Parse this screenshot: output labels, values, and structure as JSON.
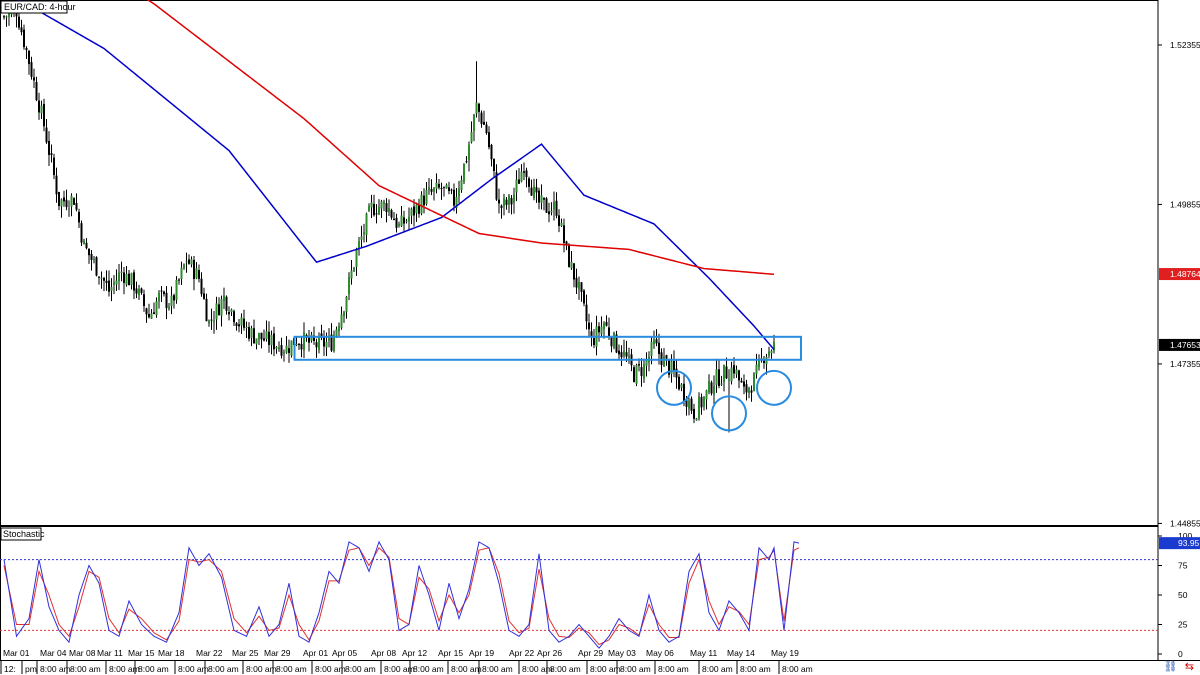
{
  "chart_data": [
    {
      "type": "candlestick",
      "title": "EUR/CAD: 4-hour",
      "x_labels": [
        "Mar 01",
        "Mar 04",
        "Mar 08",
        "Mar 11",
        "Mar 15",
        "Mar 18",
        "Mar 22",
        "Mar 25",
        "Mar 29",
        "Apr 01",
        "Apr 05",
        "Apr 08",
        "Apr 12",
        "Apr 15",
        "Apr 19",
        "Apr 22",
        "Apr 26",
        "Apr 29",
        "May 03",
        "May 06",
        "May 11",
        "May 14",
        "May 19"
      ],
      "x_sublabels": [
        "12:",
        "pm",
        "8:00 am",
        "8:00 am",
        "8:00 am",
        "8:00 am",
        "8:00 am",
        "8:00 am",
        "8:00 am",
        "8:00 am",
        "8:00 am",
        "8:00 am",
        "8:00 am",
        "8:00 am",
        "8:00 am",
        "8:00 am",
        "8:00 am",
        "8:00 am",
        "8:00 am",
        "8:00 am",
        "8:00 am",
        "8:00 am",
        "8:00 am",
        "8:00 am",
        "8:00 am",
        "8:00 am"
      ],
      "y_ticks": [
        "1.52355",
        "1.49855",
        "1.47355",
        "1.44855"
      ],
      "y_range": [
        1.4483,
        1.5306
      ],
      "close_path": [
        [
          0,
          1.528
        ],
        [
          5,
          1.529
        ],
        [
          10,
          1.521
        ],
        [
          16,
          1.511
        ],
        [
          22,
          1.499
        ],
        [
          28,
          1.4995
        ],
        [
          32,
          1.492
        ],
        [
          38,
          1.488
        ],
        [
          42,
          1.485
        ],
        [
          47,
          1.488
        ],
        [
          52,
          1.486
        ],
        [
          58,
          1.481
        ],
        [
          62,
          1.484
        ],
        [
          67,
          1.483
        ],
        [
          73,
          1.49
        ],
        [
          78,
          1.487
        ],
        [
          82,
          1.48
        ],
        [
          88,
          1.484
        ],
        [
          94,
          1.48
        ],
        [
          100,
          1.478
        ],
        [
          107,
          1.477
        ],
        [
          113,
          1.476
        ],
        [
          117,
          1.4775
        ],
        [
          125,
          1.4765
        ],
        [
          131,
          1.477
        ],
        [
          136,
          1.483
        ],
        [
          141,
          1.491
        ],
        [
          147,
          1.498
        ],
        [
          153,
          1.4985
        ],
        [
          158,
          1.495
        ],
        [
          163,
          1.497
        ],
        [
          169,
          1.5
        ],
        [
          175,
          1.501
        ],
        [
          180,
          1.499
        ],
        [
          185,
          1.506
        ],
        [
          189,
          1.514
        ],
        [
          193,
          1.51
        ],
        [
          198,
          1.498
        ],
        [
          203,
          1.499
        ],
        [
          208,
          1.505
        ],
        [
          213,
          1.499
        ],
        [
          217,
          1.498
        ],
        [
          221,
          1.498
        ],
        [
          225,
          1.491
        ],
        [
          230,
          1.485
        ],
        [
          235,
          1.477
        ],
        [
          240,
          1.48
        ],
        [
          244,
          1.477
        ],
        [
          248,
          1.475
        ],
        [
          252,
          1.472
        ],
        [
          256,
          1.473
        ],
        [
          260,
          1.4765
        ],
        [
          264,
          1.474
        ],
        [
          268,
          1.472
        ],
        [
          272,
          1.469
        ],
        [
          276,
          1.466
        ],
        [
          280,
          1.468
        ],
        [
          284,
          1.471
        ],
        [
          288,
          1.472
        ],
        [
          292,
          1.473
        ],
        [
          296,
          1.469
        ],
        [
          300,
          1.471
        ],
        [
          304,
          1.475
        ],
        [
          308,
          1.4765
        ]
      ],
      "extremes": {
        "high": 1.521,
        "low": 1.4628
      },
      "moving_averages": [
        {
          "color": "#0000cc",
          "path": [
            [
              0,
              1.532
            ],
            [
              40,
              1.523
            ],
            [
              90,
              1.507
            ],
            [
              125,
              1.4895
            ],
            [
              145,
              1.492
            ],
            [
              175,
              1.4965
            ],
            [
              195,
              1.5025
            ],
            [
              215,
              1.508
            ],
            [
              232,
              1.5
            ],
            [
              260,
              1.4955
            ],
            [
              282,
              1.487
            ],
            [
              300,
              1.4795
            ],
            [
              308,
              1.4758
            ]
          ]
        },
        {
          "color": "#e00000",
          "path": [
            [
              0,
              1.545
            ],
            [
              60,
              1.53
            ],
            [
              120,
              1.512
            ],
            [
              150,
              1.5015
            ],
            [
              190,
              1.494
            ],
            [
              215,
              1.4925
            ],
            [
              250,
              1.4915
            ],
            [
              280,
              1.4885
            ],
            [
              308,
              1.4876
            ]
          ]
        }
      ],
      "current_price_tags": [
        {
          "value": "1.48764",
          "color": "#e02020"
        },
        {
          "value": "1.47653",
          "color": "#000000"
        }
      ],
      "support_zone": {
        "from": 1.4742,
        "to": 1.4778,
        "color": "#2a8ce0"
      },
      "highlight_circles": [
        {
          "index": 268,
          "price": 1.4698,
          "color": "#2a8ce0"
        },
        {
          "index": 290,
          "price": 1.4658,
          "color": "#2a8ce0"
        },
        {
          "index": 308,
          "price": 1.4698,
          "color": "#2a8ce0"
        }
      ]
    },
    {
      "type": "line",
      "title": "Stochastic",
      "y_ticks": [
        "100",
        "75",
        "50",
        "25",
        "0"
      ],
      "y_range": [
        0,
        100
      ],
      "levels": [
        80,
        20
      ],
      "value_tag": "93.95",
      "k_path": [
        [
          0,
          80
        ],
        [
          5,
          15
        ],
        [
          10,
          30
        ],
        [
          14,
          80
        ],
        [
          18,
          40
        ],
        [
          22,
          20
        ],
        [
          26,
          10
        ],
        [
          30,
          50
        ],
        [
          34,
          75
        ],
        [
          38,
          60
        ],
        [
          42,
          20
        ],
        [
          46,
          15
        ],
        [
          50,
          45
        ],
        [
          55,
          25
        ],
        [
          60,
          15
        ],
        [
          65,
          10
        ],
        [
          70,
          35
        ],
        [
          74,
          90
        ],
        [
          78,
          75
        ],
        [
          82,
          85
        ],
        [
          87,
          65
        ],
        [
          92,
          20
        ],
        [
          97,
          15
        ],
        [
          102,
          40
        ],
        [
          106,
          15
        ],
        [
          110,
          25
        ],
        [
          114,
          60
        ],
        [
          118,
          15
        ],
        [
          122,
          10
        ],
        [
          126,
          35
        ],
        [
          130,
          70
        ],
        [
          134,
          60
        ],
        [
          138,
          95
        ],
        [
          142,
          90
        ],
        [
          146,
          70
        ],
        [
          150,
          95
        ],
        [
          154,
          80
        ],
        [
          158,
          20
        ],
        [
          162,
          25
        ],
        [
          166,
          75
        ],
        [
          170,
          50
        ],
        [
          174,
          20
        ],
        [
          178,
          60
        ],
        [
          182,
          30
        ],
        [
          186,
          55
        ],
        [
          190,
          95
        ],
        [
          194,
          90
        ],
        [
          198,
          60
        ],
        [
          202,
          20
        ],
        [
          206,
          15
        ],
        [
          210,
          25
        ],
        [
          214,
          85
        ],
        [
          218,
          20
        ],
        [
          222,
          10
        ],
        [
          226,
          15
        ],
        [
          230,
          25
        ],
        [
          234,
          15
        ],
        [
          238,
          5
        ],
        [
          242,
          15
        ],
        [
          246,
          30
        ],
        [
          250,
          20
        ],
        [
          254,
          15
        ],
        [
          258,
          50
        ],
        [
          262,
          20
        ],
        [
          266,
          10
        ],
        [
          270,
          15
        ],
        [
          274,
          70
        ],
        [
          278,
          85
        ],
        [
          282,
          35
        ],
        [
          286,
          20
        ],
        [
          290,
          45
        ],
        [
          294,
          35
        ],
        [
          298,
          20
        ],
        [
          302,
          90
        ],
        [
          306,
          80
        ],
        [
          308,
          90
        ],
        [
          312,
          20
        ],
        [
          316,
          95
        ],
        [
          318,
          94
        ]
      ],
      "d_path": [
        [
          0,
          75
        ],
        [
          5,
          25
        ],
        [
          10,
          25
        ],
        [
          14,
          70
        ],
        [
          18,
          50
        ],
        [
          22,
          25
        ],
        [
          26,
          15
        ],
        [
          30,
          40
        ],
        [
          34,
          70
        ],
        [
          38,
          65
        ],
        [
          42,
          30
        ],
        [
          46,
          18
        ],
        [
          50,
          38
        ],
        [
          55,
          30
        ],
        [
          60,
          18
        ],
        [
          65,
          12
        ],
        [
          70,
          28
        ],
        [
          74,
          80
        ],
        [
          78,
          78
        ],
        [
          82,
          80
        ],
        [
          87,
          70
        ],
        [
          92,
          30
        ],
        [
          97,
          18
        ],
        [
          102,
          32
        ],
        [
          106,
          20
        ],
        [
          110,
          22
        ],
        [
          114,
          50
        ],
        [
          118,
          25
        ],
        [
          122,
          12
        ],
        [
          126,
          28
        ],
        [
          130,
          62
        ],
        [
          134,
          62
        ],
        [
          138,
          88
        ],
        [
          142,
          90
        ],
        [
          146,
          75
        ],
        [
          150,
          90
        ],
        [
          154,
          82
        ],
        [
          158,
          30
        ],
        [
          162,
          25
        ],
        [
          166,
          65
        ],
        [
          170,
          55
        ],
        [
          174,
          28
        ],
        [
          178,
          50
        ],
        [
          182,
          35
        ],
        [
          186,
          50
        ],
        [
          190,
          88
        ],
        [
          194,
          90
        ],
        [
          198,
          68
        ],
        [
          202,
          28
        ],
        [
          206,
          18
        ],
        [
          210,
          22
        ],
        [
          214,
          72
        ],
        [
          218,
          30
        ],
        [
          222,
          15
        ],
        [
          226,
          14
        ],
        [
          230,
          22
        ],
        [
          234,
          18
        ],
        [
          238,
          8
        ],
        [
          242,
          12
        ],
        [
          246,
          25
        ],
        [
          250,
          22
        ],
        [
          254,
          16
        ],
        [
          258,
          42
        ],
        [
          262,
          25
        ],
        [
          266,
          14
        ],
        [
          270,
          14
        ],
        [
          274,
          60
        ],
        [
          278,
          80
        ],
        [
          282,
          45
        ],
        [
          286,
          25
        ],
        [
          290,
          40
        ],
        [
          294,
          36
        ],
        [
          298,
          25
        ],
        [
          302,
          80
        ],
        [
          306,
          82
        ],
        [
          308,
          88
        ],
        [
          312,
          28
        ],
        [
          316,
          88
        ],
        [
          318,
          90
        ]
      ]
    }
  ],
  "footer": {
    "icon_left": "link-icon",
    "icon_right": "arrow-icon"
  }
}
